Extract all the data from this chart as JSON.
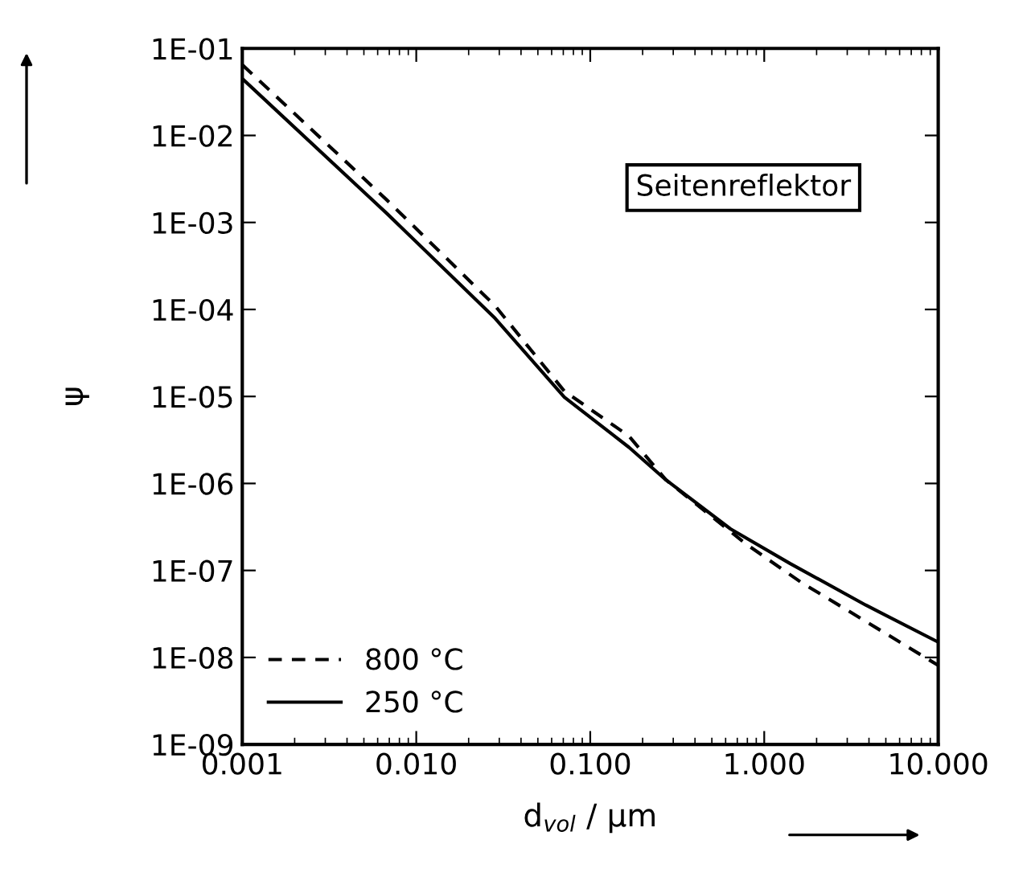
{
  "chart_data": {
    "type": "line",
    "xlabel": "d$_{vol}$ / µm",
    "ylabel": "ψ",
    "log": "xy",
    "legend": "bottom left",
    "grid": false,
    "xlim": [
      0.001,
      10
    ],
    "ylim": [
      1e-09,
      0.1
    ],
    "xticks": [
      0.001,
      {
        "value": 0.01,
        "label": "0.010"
      },
      {
        "value": 0.1,
        "label": "0.100"
      },
      {
        "value": 1,
        "label": "1.000"
      },
      {
        "value": 10,
        "label": "10.000"
      }
    ],
    "yticks": [
      {
        "value": 1e-09,
        "label": "1E-09"
      },
      {
        "value": 1e-08,
        "label": "1E-08"
      },
      {
        "value": 1e-07,
        "label": "1E-07"
      },
      {
        "value": 1e-06,
        "label": "1E-06"
      },
      {
        "value": 1e-05,
        "label": "1E-05"
      },
      {
        "value": 0.0001,
        "label": "1E-04"
      },
      {
        "value": 0.001,
        "label": "1E-03"
      },
      {
        "value": 0.01,
        "label": "1E-02"
      },
      {
        "value": 0.1,
        "label": "1E-01"
      }
    ],
    "annotations": [
      "Seitenreflektor"
    ],
    "series": [
      {
        "name": "800 °C",
        "color": "#000000",
        "line_style": "dashed",
        "x": [
          0.001,
          0.0068,
          0.0284,
          0.071,
          0.167,
          0.272,
          0.79,
          1.63,
          3.83,
          10
        ],
        "values": [
          0.065,
          0.0018,
          0.00011,
          1.15e-05,
          3.5e-06,
          1.1e-06,
          2e-07,
          7.3e-08,
          2.6e-08,
          8.1e-09
        ]
      },
      {
        "name": "250 °C",
        "color": "#000000",
        "line_style": "solid",
        "x": [
          0.001,
          0.0068,
          0.0284,
          0.071,
          0.167,
          0.272,
          0.64,
          1.41,
          3.83,
          10
        ],
        "values": [
          0.045,
          0.00126,
          7.9e-05,
          9.8e-06,
          2.6e-06,
          1.1e-06,
          3e-07,
          1.2e-07,
          4e-08,
          1.5e-08
        ]
      }
    ]
  }
}
